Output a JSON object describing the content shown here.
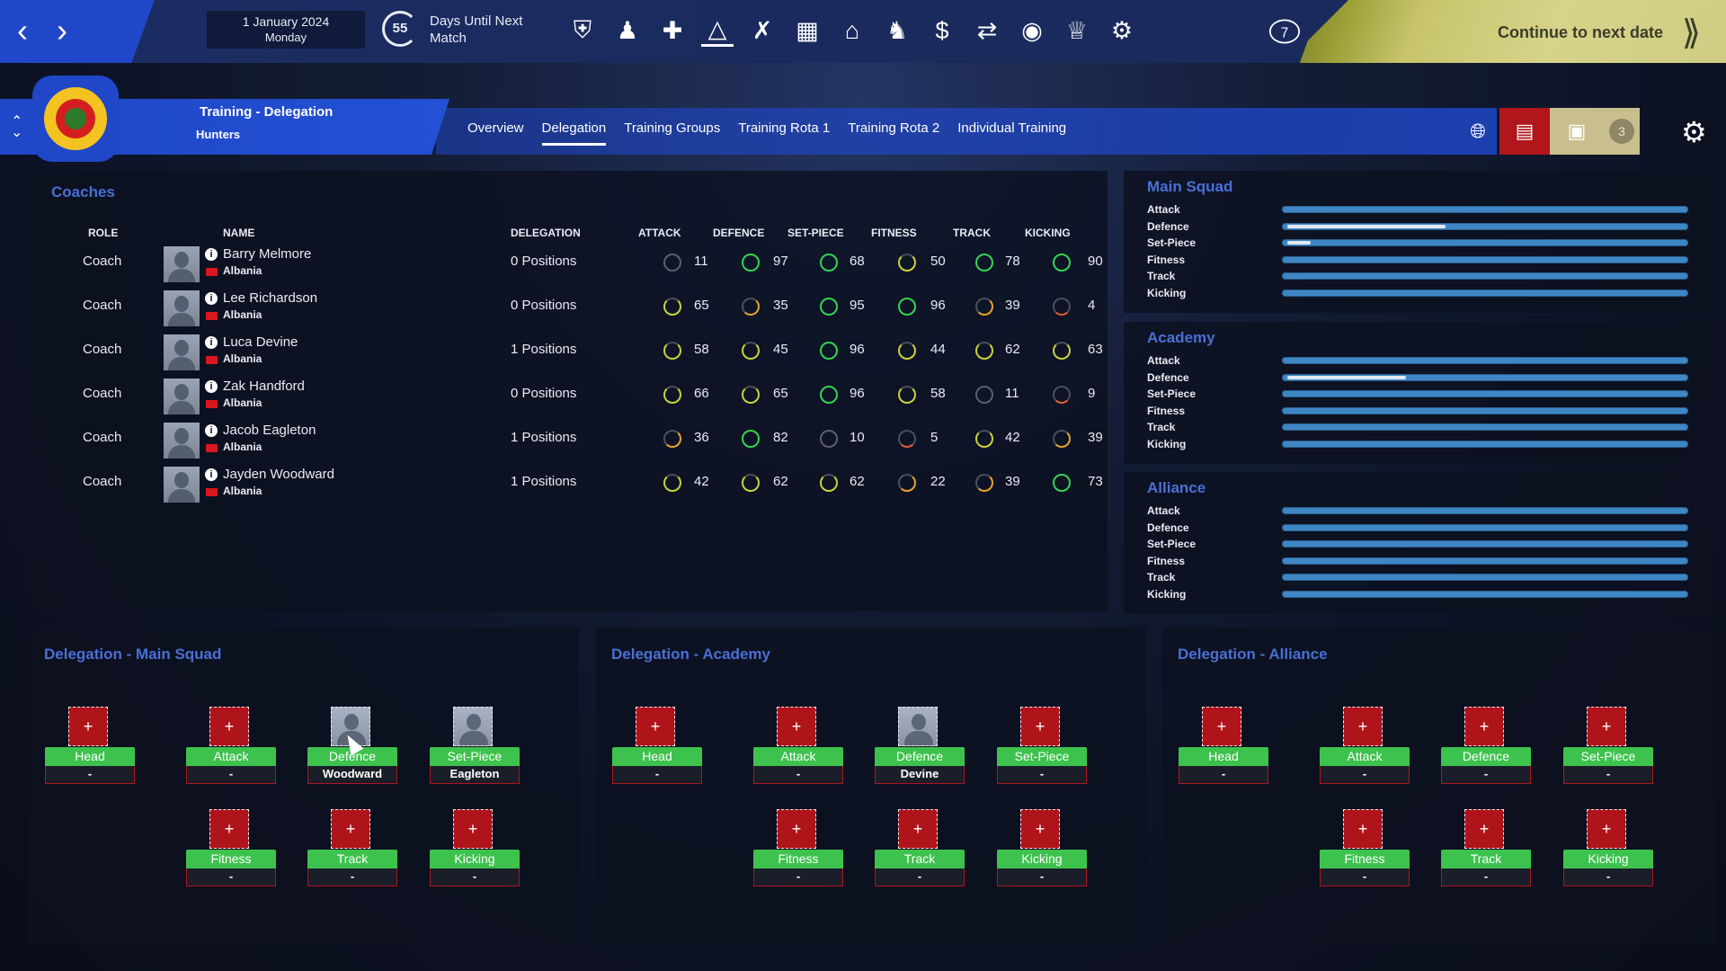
{
  "topbar": {
    "date": "1 January 2024",
    "weekday": "Monday",
    "countdown": "55",
    "countdown_label": "Days Until Next Match",
    "continue_label": "Continue to next date",
    "icons": [
      "squad-icon",
      "staff-icon",
      "medical-icon",
      "training-icon",
      "tactics-icon",
      "calendar-icon",
      "home-icon",
      "club-icon",
      "finance-icon",
      "transfers-icon",
      "scouting-icon",
      "trophy-icon",
      "settings-people-icon"
    ],
    "help_label": "7"
  },
  "header": {
    "title": "Training - Delegation",
    "subtitle": "Hunters",
    "tabs": [
      "Overview",
      "Delegation",
      "Training Groups",
      "Training Rota 1",
      "Training Rota 2",
      "Individual Training"
    ],
    "active_tab": "Delegation",
    "inbox_count": "3"
  },
  "coaches": {
    "title": "Coaches",
    "headers": {
      "role": "ROLE",
      "name": "NAME",
      "delegation": "DELEGATION",
      "attack": "ATTACK",
      "defence": "DEFENCE",
      "setpiece": "SET-PIECE",
      "fitness": "FITNESS",
      "track": "TRACK",
      "kicking": "KICKING"
    },
    "rows": [
      {
        "role": "Coach",
        "name": "Barry Melmore",
        "nation": "Albania",
        "delegation": "0 Positions",
        "attack": "11",
        "defence": "97",
        "setpiece": "68",
        "fitness": "50",
        "track": "78",
        "kicking": "90"
      },
      {
        "role": "Coach",
        "name": "Lee Richardson",
        "nation": "Albania",
        "delegation": "0 Positions",
        "attack": "65",
        "defence": "35",
        "setpiece": "95",
        "fitness": "96",
        "track": "39",
        "kicking": "4"
      },
      {
        "role": "Coach",
        "name": "Luca Devine",
        "nation": "Albania",
        "delegation": "1 Positions",
        "attack": "58",
        "defence": "45",
        "setpiece": "96",
        "fitness": "44",
        "track": "62",
        "kicking": "63"
      },
      {
        "role": "Coach",
        "name": "Zak Handford",
        "nation": "Albania",
        "delegation": "0 Positions",
        "attack": "66",
        "defence": "65",
        "setpiece": "96",
        "fitness": "58",
        "track": "11",
        "kicking": "9"
      },
      {
        "role": "Coach",
        "name": "Jacob Eagleton",
        "nation": "Albania",
        "delegation": "1 Positions",
        "attack": "36",
        "defence": "82",
        "setpiece": "10",
        "fitness": "5",
        "track": "42",
        "kicking": "39"
      },
      {
        "role": "Coach",
        "name": "Jayden Woodward",
        "nation": "Albania",
        "delegation": "1 Positions",
        "attack": "42",
        "defence": "62",
        "setpiece": "62",
        "fitness": "22",
        "track": "39",
        "kicking": "73"
      }
    ]
  },
  "squads": [
    {
      "title": "Main Squad",
      "labels": [
        "Attack",
        "Defence",
        "Set-Piece",
        "Fitness",
        "Track",
        "Kicking"
      ],
      "levels": [
        0,
        0.4,
        0.06,
        0,
        0,
        0
      ]
    },
    {
      "title": "Academy",
      "labels": [
        "Attack",
        "Defence",
        "Set-Piece",
        "Fitness",
        "Track",
        "Kicking"
      ],
      "levels": [
        0,
        0.3,
        0,
        0,
        0,
        0
      ]
    },
    {
      "title": "Alliance",
      "labels": [
        "Attack",
        "Defence",
        "Set-Piece",
        "Fitness",
        "Track",
        "Kicking"
      ],
      "levels": [
        0,
        0,
        0,
        0,
        0,
        0
      ]
    }
  ],
  "delegations": [
    {
      "title": "Delegation - Main Squad",
      "slots": [
        {
          "role": "Head",
          "assignee": "-",
          "filled": false
        },
        {
          "role": "Attack",
          "assignee": "-",
          "filled": false
        },
        {
          "role": "Defence",
          "assignee": "Woodward",
          "filled": true
        },
        {
          "role": "Set-Piece",
          "assignee": "Eagleton",
          "filled": true
        },
        {
          "role": "Fitness",
          "assignee": "-",
          "filled": false
        },
        {
          "role": "Track",
          "assignee": "-",
          "filled": false
        },
        {
          "role": "Kicking",
          "assignee": "-",
          "filled": false
        }
      ]
    },
    {
      "title": "Delegation - Academy",
      "slots": [
        {
          "role": "Head",
          "assignee": "-",
          "filled": false
        },
        {
          "role": "Attack",
          "assignee": "-",
          "filled": false
        },
        {
          "role": "Defence",
          "assignee": "Devine",
          "filled": true
        },
        {
          "role": "Set-Piece",
          "assignee": "-",
          "filled": false
        },
        {
          "role": "Fitness",
          "assignee": "-",
          "filled": false
        },
        {
          "role": "Track",
          "assignee": "-",
          "filled": false
        },
        {
          "role": "Kicking",
          "assignee": "-",
          "filled": false
        }
      ]
    },
    {
      "title": "Delegation - Alliance",
      "slots": [
        {
          "role": "Head",
          "assignee": "-",
          "filled": false
        },
        {
          "role": "Attack",
          "assignee": "-",
          "filled": false
        },
        {
          "role": "Defence",
          "assignee": "-",
          "filled": false
        },
        {
          "role": "Set-Piece",
          "assignee": "-",
          "filled": false
        },
        {
          "role": "Fitness",
          "assignee": "-",
          "filled": false
        },
        {
          "role": "Track",
          "assignee": "-",
          "filled": false
        },
        {
          "role": "Kicking",
          "assignee": "-",
          "filled": false
        }
      ]
    }
  ],
  "add_symbol": "+"
}
